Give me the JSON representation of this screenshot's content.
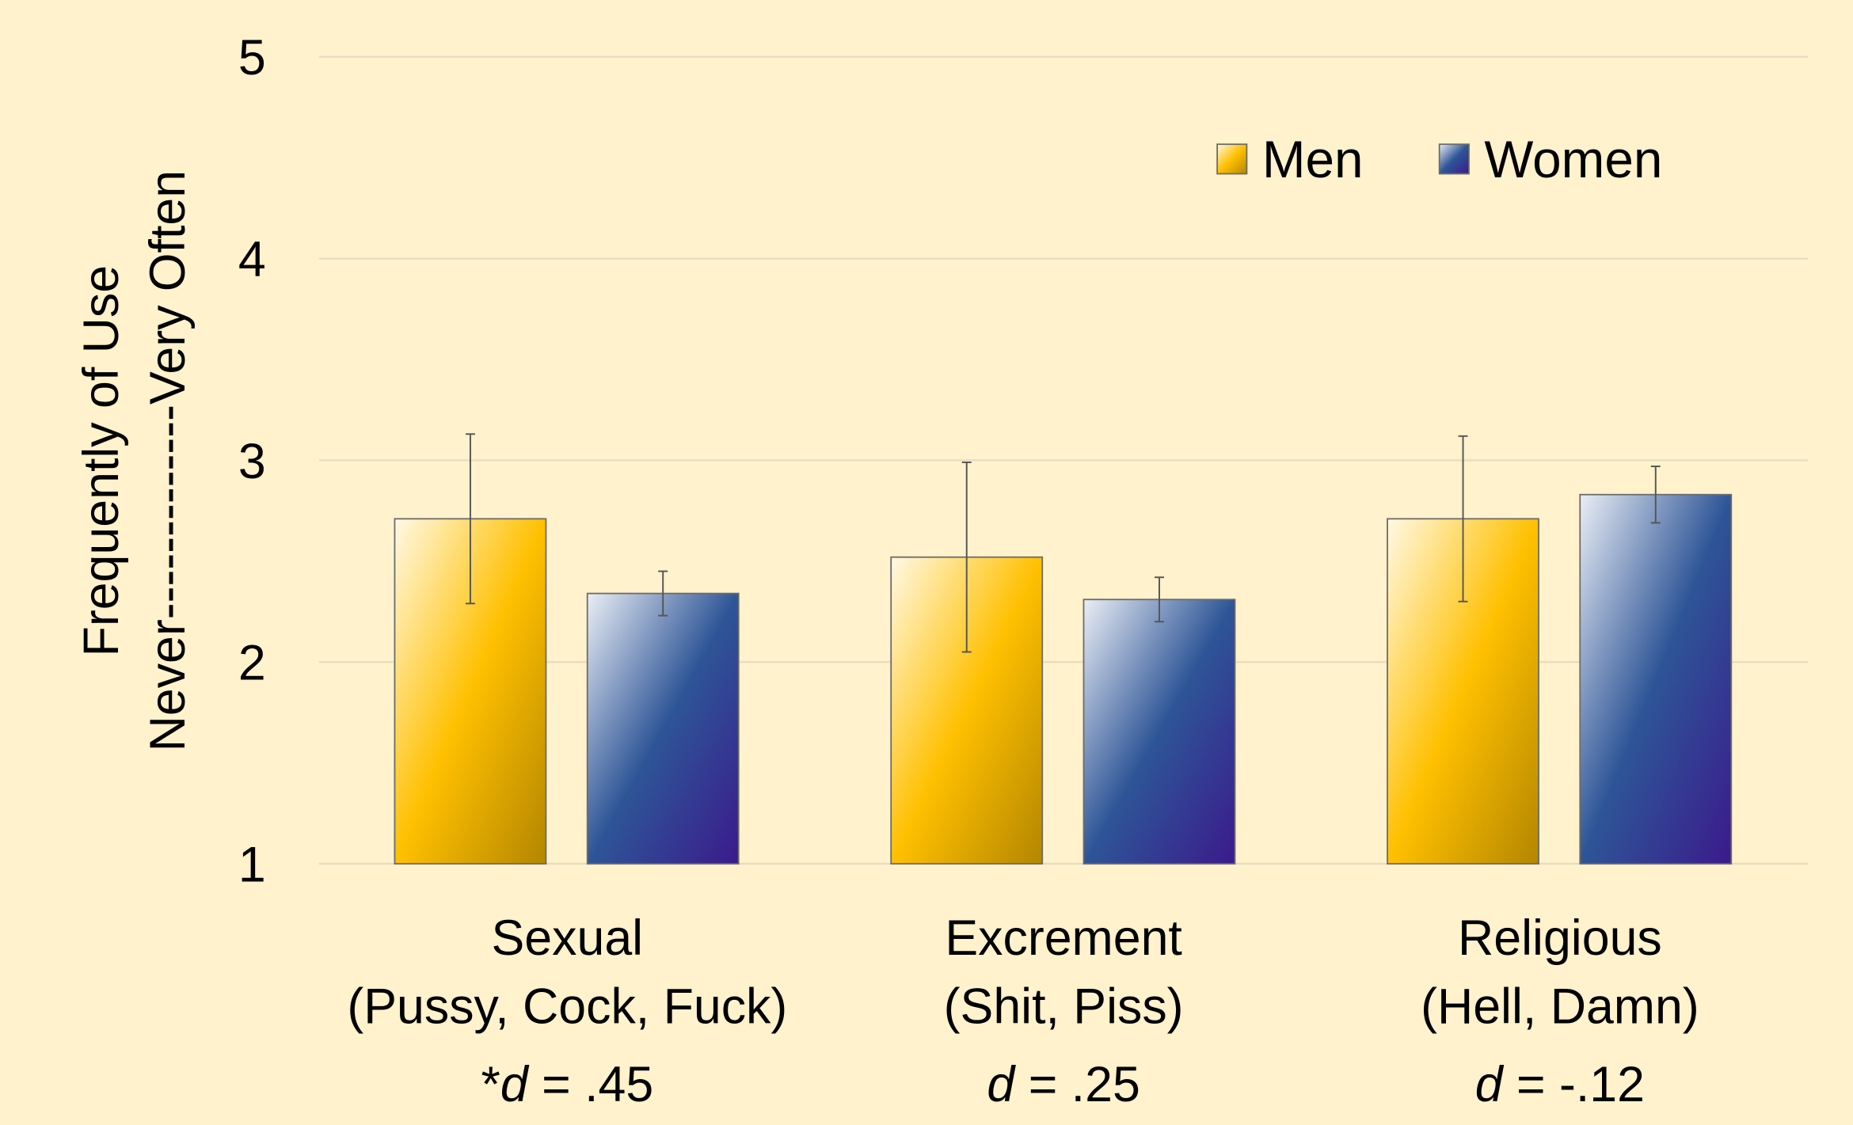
{
  "chart_data": {
    "type": "bar",
    "y_label": "Frequently of Use",
    "y_label_scale": "Never-------------Very Often",
    "categories": [
      "Sexual",
      "Excrement",
      "Religious"
    ],
    "category_examples": [
      "(Pussy, Cock, Fuck)",
      "(Shit, Piss)",
      "(Hell, Damn)"
    ],
    "effect_sizes": [
      "*d = .45",
      "d = .25",
      "d = -.12"
    ],
    "series": [
      {
        "name": "Men",
        "color": "#ffc000",
        "values": [
          2.71,
          2.52,
          2.71
        ],
        "errors": [
          0.42,
          0.47,
          0.41
        ]
      },
      {
        "name": "Women",
        "color": "#2e5597",
        "values": [
          2.34,
          2.31,
          2.83
        ],
        "errors": [
          0.11,
          0.11,
          0.14
        ]
      }
    ],
    "ylim": [
      1,
      5
    ],
    "yticks": [
      1,
      2,
      3,
      4,
      5
    ],
    "grid": true,
    "legend": "top-right"
  }
}
